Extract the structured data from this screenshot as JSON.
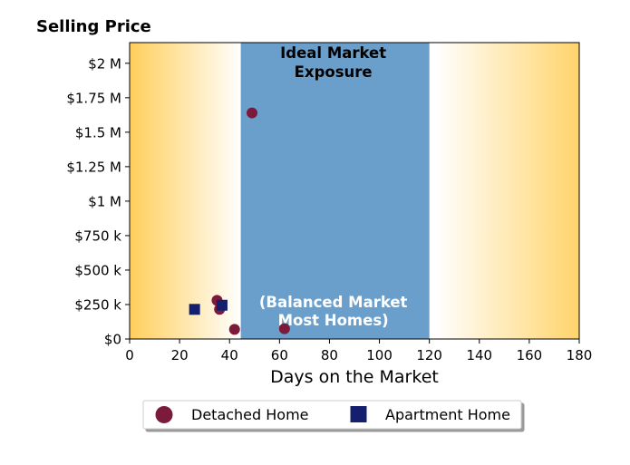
{
  "chart_data": {
    "type": "scatter",
    "title": "Selling Price",
    "xlabel": "Days on the Market",
    "ylabel": "",
    "xlim": [
      0,
      180
    ],
    "ylim": [
      0,
      2150000
    ],
    "x_ticks": [
      0,
      20,
      40,
      60,
      80,
      100,
      120,
      140,
      160,
      180
    ],
    "x_tick_labels": [
      "0",
      "20",
      "40",
      "60",
      "80",
      "100",
      "120",
      "140",
      "160",
      "180"
    ],
    "y_ticks": [
      0,
      250000,
      500000,
      750000,
      1000000,
      1250000,
      1500000,
      1750000,
      2000000
    ],
    "y_tick_labels": [
      "$0",
      "$250 k",
      "$500 k",
      "$750 k",
      "$1 M",
      "$1.25 M",
      "$1.5 M",
      "$1.75 M",
      "$2 M"
    ],
    "grid": false,
    "legend_position": "bottom-center",
    "background_band": {
      "x_range": [
        44.5,
        120
      ],
      "color": "#6a9fcb",
      "label_top_lines": [
        "Ideal Market",
        "Exposure"
      ],
      "label_bottom_lines": [
        "(Balanced Market",
        "Most Homes)"
      ]
    },
    "gradient_color": "#ffcf5c",
    "series": [
      {
        "name": "Detached Home",
        "marker": "circle",
        "color": "#7b1a3a",
        "points": [
          {
            "x": 49,
            "y": 1640000
          },
          {
            "x": 35,
            "y": 280000
          },
          {
            "x": 36,
            "y": 215000
          },
          {
            "x": 42,
            "y": 70000
          },
          {
            "x": 62,
            "y": 75000
          }
        ]
      },
      {
        "name": "Apartment Home",
        "marker": "square",
        "color": "#14206e",
        "points": [
          {
            "x": 26,
            "y": 215000
          },
          {
            "x": 37,
            "y": 245000
          }
        ]
      }
    ]
  }
}
